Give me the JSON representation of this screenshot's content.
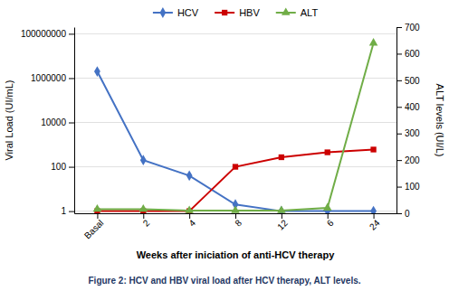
{
  "chart_data": {
    "type": "line",
    "categories": [
      "Basal",
      "2",
      "4",
      "8",
      "12",
      "6",
      "24"
    ],
    "series": [
      {
        "name": "HCV",
        "color": "#4472C4",
        "marker": "diamond",
        "values": [
          2000000,
          200,
          40,
          2,
          1,
          1,
          1
        ]
      },
      {
        "name": "HBV",
        "color": "#CC0000",
        "marker": "square",
        "values": [
          1,
          1,
          1,
          100,
          270,
          450,
          600
        ]
      },
      {
        "name": "ALT",
        "color": "#70AD47",
        "marker": "triangle",
        "axis": "y2",
        "values": [
          15,
          15,
          10,
          10,
          10,
          20,
          640
        ]
      }
    ],
    "xlabel": "Weeks after iniciation of anti-HCV therapy",
    "ylabel": "Viral Load (UI/mL)",
    "y2label": "ALT levels (UI/L)",
    "annotations": [
      "Figure 2: HCV and HBV viral load after HCV therapy, ALT levels."
    ],
    "log": "y",
    "ylim": [
      0.8,
      200000000
    ],
    "yticks": [
      1,
      100,
      10000,
      1000000,
      100000000
    ],
    "y2lim": [
      0,
      700
    ],
    "y2ticks": [
      0,
      100,
      200,
      300,
      400,
      500,
      600,
      700
    ],
    "grid": true,
    "legend": "top"
  }
}
